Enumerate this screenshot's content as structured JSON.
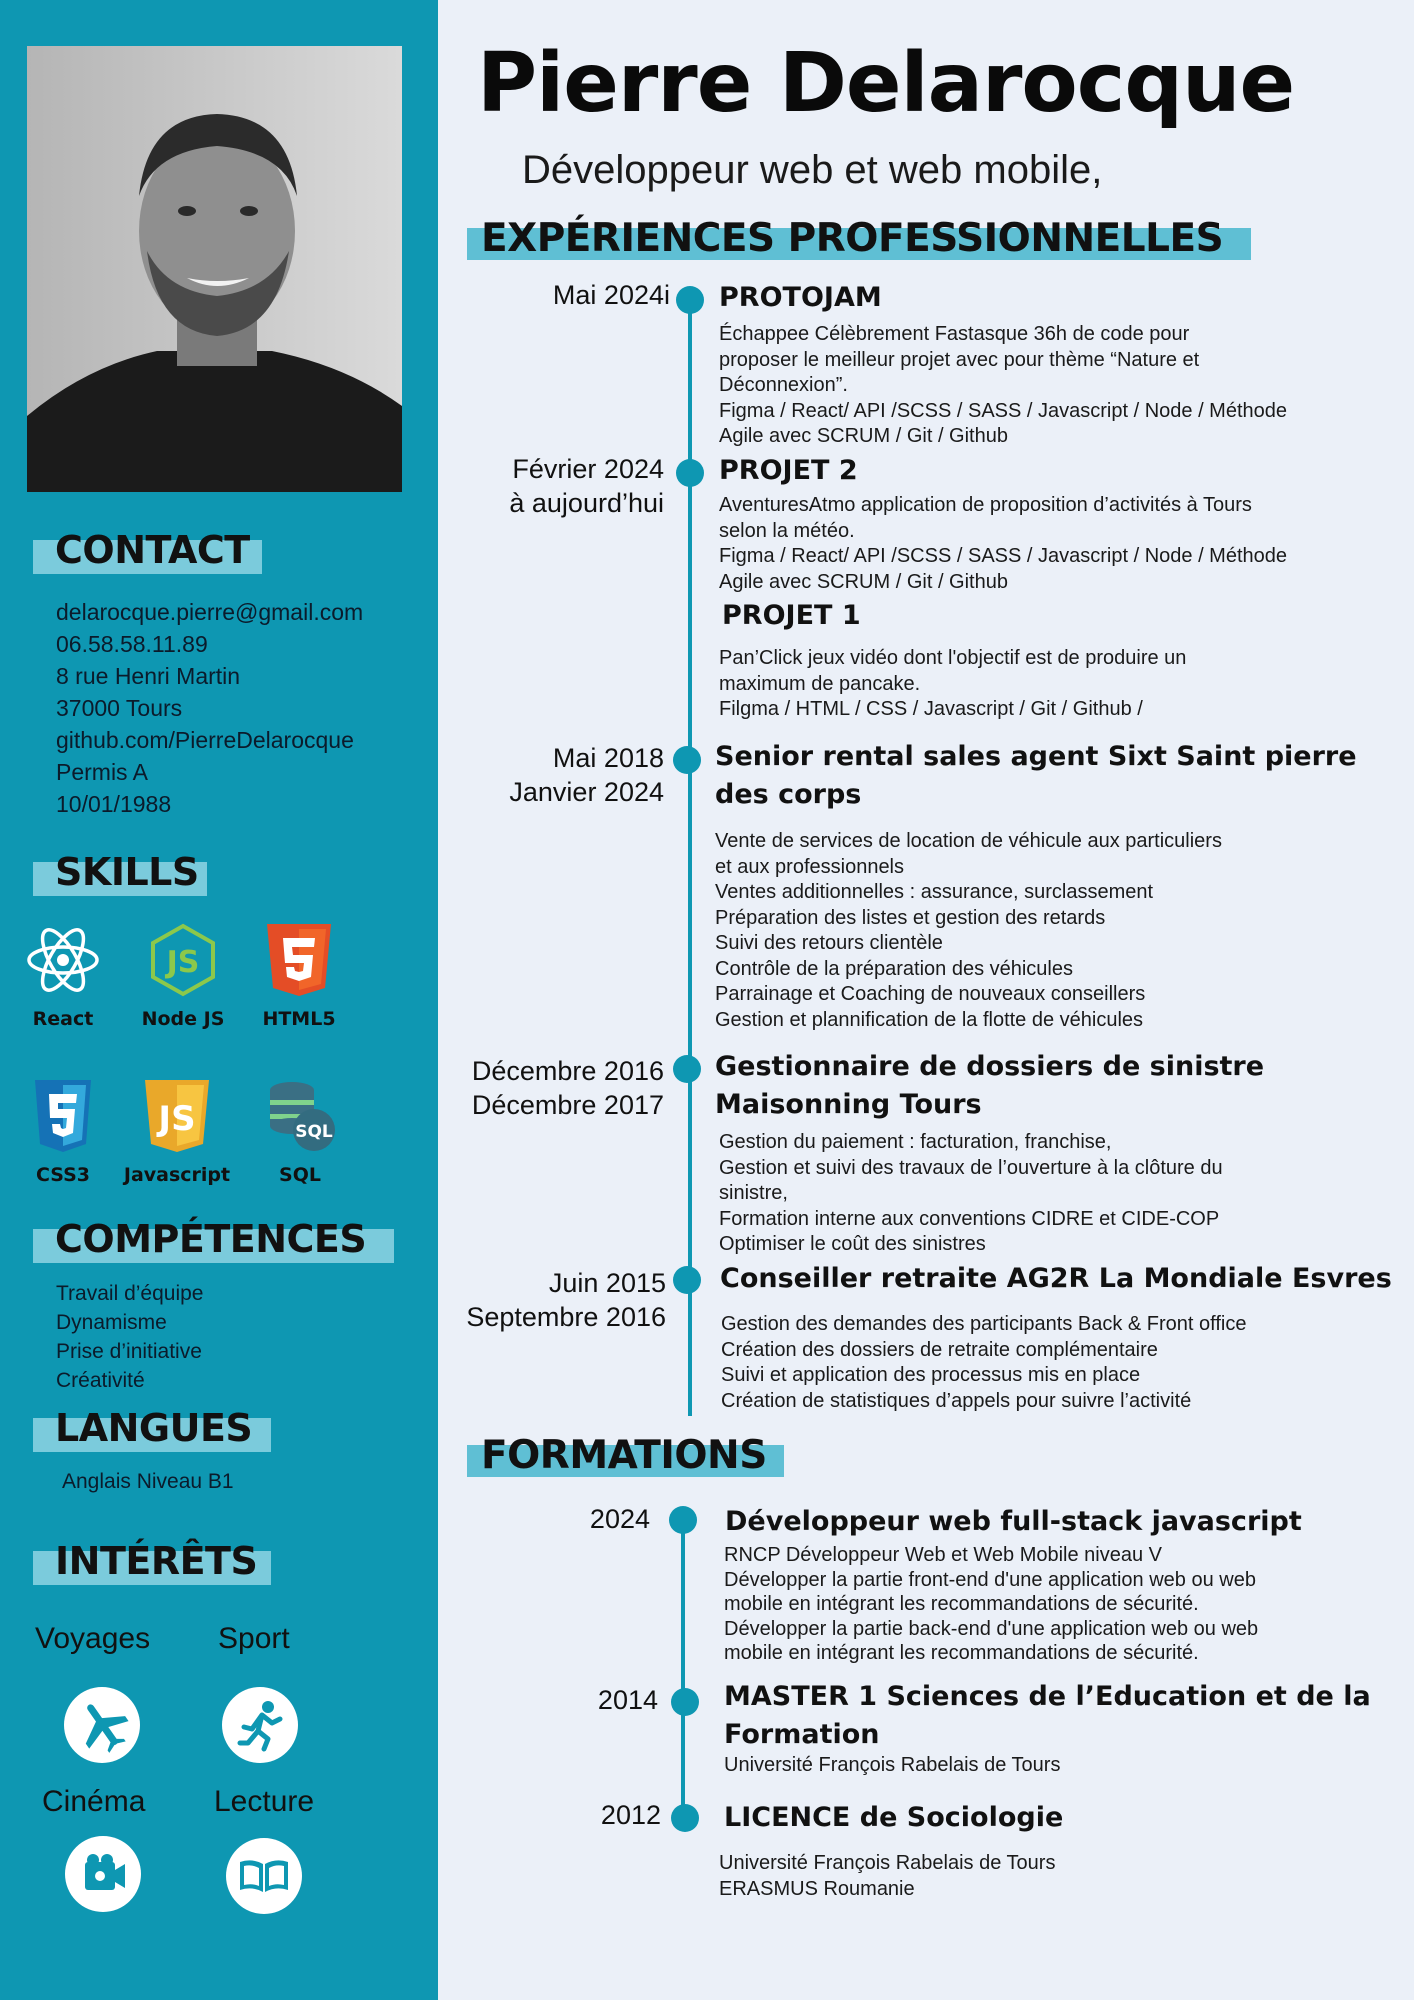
{
  "header": {
    "name": "Pierre Delarocque",
    "subtitle": "Développeur web et web mobile,"
  },
  "contact": {
    "heading": "CONTACT",
    "lines": [
      "delarocque.pierre@gmail.com",
      "06.58.58.11.89",
      "8 rue Henri Martin",
      "37000 Tours",
      "github.com/PierreDelarocque",
      "Permis  A",
      "10/01/1988"
    ]
  },
  "skills": {
    "heading": "SKILLS",
    "items": [
      {
        "label": "React",
        "icon": "react-icon"
      },
      {
        "label": "Node JS",
        "icon": "nodejs-icon"
      },
      {
        "label": "HTML5",
        "icon": "html5-icon"
      },
      {
        "label": "CSS3",
        "icon": "css3-icon"
      },
      {
        "label": "Javascript",
        "icon": "javascript-icon"
      },
      {
        "label": "SQL",
        "icon": "sql-icon"
      }
    ]
  },
  "competences": {
    "heading": "COMPÉTENCES",
    "items": [
      "Travail d’équipe",
      "Dynamisme",
      "Prise d’initiative",
      "Créativité"
    ]
  },
  "langues": {
    "heading": "LANGUES",
    "items": [
      "Anglais Niveau B1"
    ]
  },
  "interets": {
    "heading": "INTÉRÊTS",
    "items": [
      {
        "label": "Voyages",
        "icon": "airplane-icon"
      },
      {
        "label": "Sport",
        "icon": "runner-icon"
      },
      {
        "label": "Cinéma",
        "icon": "film-camera-icon"
      },
      {
        "label": "Lecture",
        "icon": "book-icon"
      }
    ]
  },
  "experiences": {
    "heading": "EXPÉRIENCES PROFESSIONNELLES",
    "items": [
      {
        "date": [
          "Mai 2024i"
        ],
        "title": [
          "PROTOJAM"
        ],
        "desc": [
          "Échappee Célèbrement Fastasque 36h de code pour",
          "proposer le meilleur projet avec pour thème “Nature et",
          "Déconnexion”.",
          "Figma / React/ API /SCSS / SASS / Javascript / Node / Méthode",
          "Agile avec SCRUM / Git / Github"
        ]
      },
      {
        "date": [
          "Février 2024",
          "à aujourd’hui"
        ],
        "title": [
          "PROJET 2"
        ],
        "desc": [
          "AventuresAtmo application de proposition d’activités à Tours",
          "selon la météo.",
          "Figma / React/ API /SCSS / SASS / Javascript / Node / Méthode",
          "Agile avec SCRUM / Git / Github"
        ]
      },
      {
        "date": [],
        "title": [
          "PROJET 1"
        ],
        "desc": [
          "Pan’Click  jeux vidéo dont l'objectif est de produire un",
          "maximum de pancake.",
          "Filgma / HTML / CSS / Javascript / Git / Github /"
        ]
      },
      {
        "date": [
          "Mai 2018",
          "Janvier 2024"
        ],
        "title": [
          "Senior rental sales agent Sixt Saint pierre",
          "des corps"
        ],
        "desc": [
          "Vente de services de location de véhicule aux particuliers",
          "et aux professionnels",
          "Ventes additionnelles : assurance, surclassement",
          "Préparation des listes et gestion des retards",
          "Suivi des retours clientèle",
          "Contrôle de la préparation des véhicules",
          "Parrainage et Coaching de nouveaux conseillers",
          "Gestion et plannification de la flotte de véhicules"
        ]
      },
      {
        "date": [
          "Décembre 2016",
          "Décembre 2017"
        ],
        "title": [
          "Gestionnaire de dossiers de sinistre",
          "Maisonning Tours"
        ],
        "desc": [
          "Gestion du paiement : facturation, franchise,",
          "Gestion et suivi des travaux de l’ouverture à la clôture du",
          "sinistre,",
          "Formation interne aux conventions CIDRE et CIDE-COP",
          "Optimiser le coût des sinistres"
        ]
      },
      {
        "date": [
          "Juin 2015",
          "Septembre 2016"
        ],
        "title": [
          "Conseiller retraite AG2R La Mondiale Esvres"
        ],
        "desc": [
          "Gestion des demandes des participants Back & Front office",
          "Création des dossiers de retraite complémentaire",
          "Suivi et application des processus mis en place",
          "Création de statistiques d’appels pour suivre l’activité"
        ]
      }
    ]
  },
  "formations": {
    "heading": "FORMATIONS",
    "items": [
      {
        "date": [
          "2024"
        ],
        "title": [
          "Développeur web full-stack javascript"
        ],
        "desc": [
          "RNCP Développeur Web et Web Mobile niveau V",
          "Développer la partie front-end d'une application web ou web",
          "mobile en intégrant les recommandations de sécurité.",
          "Développer la partie back-end d'une application web ou web",
          "mobile en intégrant les recommandations de sécurité."
        ]
      },
      {
        "date": [
          "2014"
        ],
        "title": [
          "MASTER 1 Sciences de l’Education et de la",
          "Formation"
        ],
        "desc": [
          "Université François Rabelais de Tours"
        ]
      },
      {
        "date": [
          "2012"
        ],
        "title": [
          "LICENCE de Sociologie"
        ],
        "desc": [
          "Université François Rabelais de Tours",
          "ERASMUS Roumanie"
        ]
      }
    ]
  },
  "colors": {
    "sidebar": "#0e97b2",
    "accent_bar": "#5fbfd4",
    "page_bg": "#ebf0f8"
  }
}
